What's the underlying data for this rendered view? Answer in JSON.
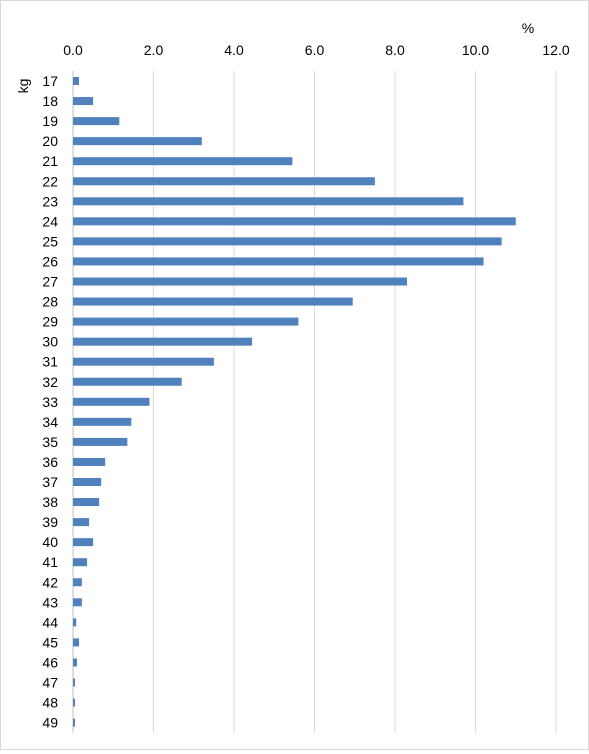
{
  "chart_data": {
    "type": "bar",
    "orientation": "horizontal",
    "unit_label": "%",
    "category_axis_label": "kg",
    "xlim": [
      0,
      12
    ],
    "x_ticks": [
      "0.0",
      "2.0",
      "4.0",
      "6.0",
      "8.0",
      "10.0",
      "12.0"
    ],
    "x_tick_values": [
      0,
      2,
      4,
      6,
      8,
      10,
      12
    ],
    "grid": "vertical",
    "legend": "none",
    "bar_color": "#4f81bd",
    "gridline_color": "#d9d9d9",
    "categories": [
      "17",
      "18",
      "19",
      "20",
      "21",
      "22",
      "23",
      "24",
      "25",
      "26",
      "27",
      "28",
      "29",
      "30",
      "31",
      "32",
      "33",
      "34",
      "35",
      "36",
      "37",
      "38",
      "39",
      "40",
      "41",
      "42",
      "43",
      "44",
      "45",
      "46",
      "47",
      "48",
      "49"
    ],
    "values": [
      0.15,
      0.5,
      1.15,
      3.2,
      5.45,
      7.5,
      9.7,
      11.0,
      10.65,
      10.2,
      8.3,
      6.95,
      5.6,
      4.45,
      3.5,
      2.7,
      1.9,
      1.45,
      1.35,
      0.8,
      0.7,
      0.65,
      0.4,
      0.5,
      0.35,
      0.22,
      0.22,
      0.08,
      0.15,
      0.1,
      0.05,
      0.05,
      0.05
    ]
  }
}
